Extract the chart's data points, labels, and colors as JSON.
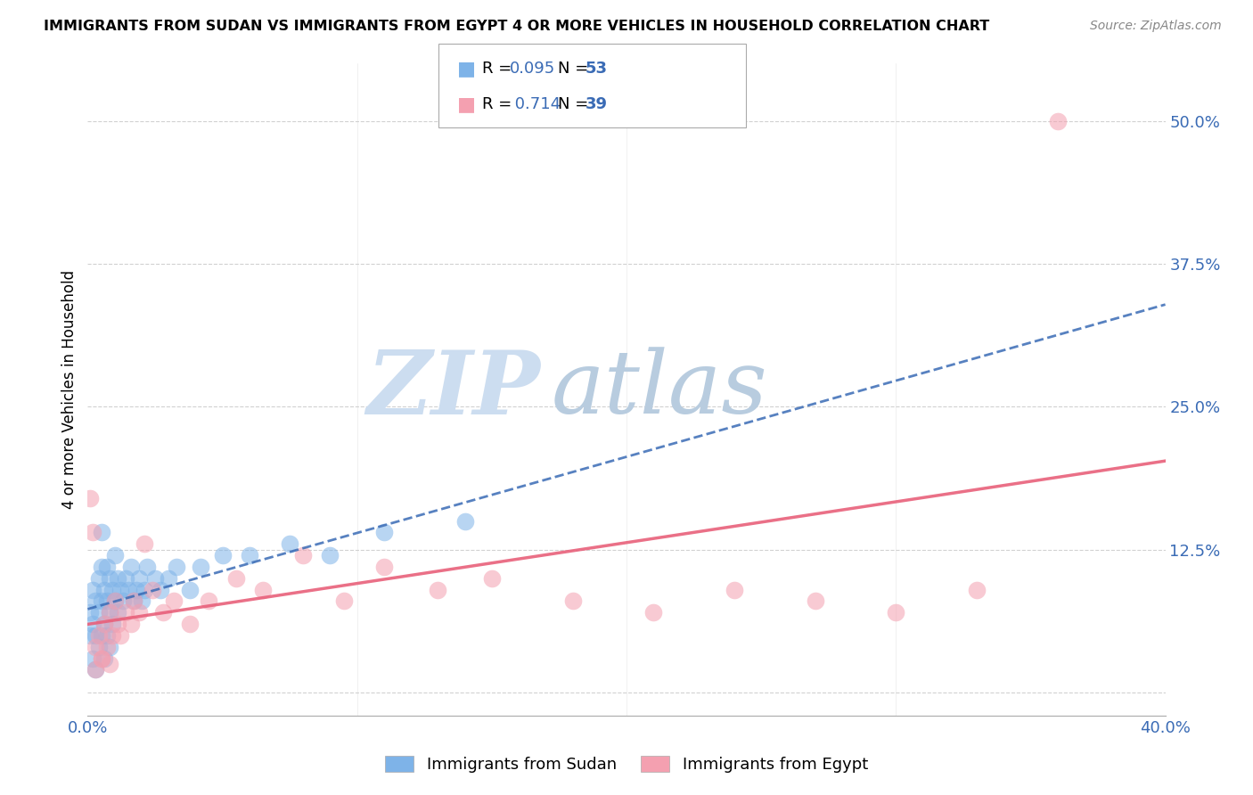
{
  "title": "IMMIGRANTS FROM SUDAN VS IMMIGRANTS FROM EGYPT 4 OR MORE VEHICLES IN HOUSEHOLD CORRELATION CHART",
  "source": "Source: ZipAtlas.com",
  "ylabel": "4 or more Vehicles in Household",
  "xlabel_sudan": "Immigrants from Sudan",
  "xlabel_egypt": "Immigrants from Egypt",
  "xlim": [
    0.0,
    0.4
  ],
  "ylim": [
    -0.02,
    0.55
  ],
  "x_ticks": [
    0.0,
    0.1,
    0.2,
    0.3,
    0.4
  ],
  "x_tick_labels_show": [
    "0.0%",
    "",
    "",
    "",
    "40.0%"
  ],
  "y_ticks": [
    0.0,
    0.125,
    0.25,
    0.375,
    0.5
  ],
  "y_tick_labels_show": [
    "",
    "12.5%",
    "25.0%",
    "37.5%",
    "50.0%"
  ],
  "sudan_R": 0.095,
  "sudan_N": 53,
  "egypt_R": 0.714,
  "egypt_N": 39,
  "sudan_color": "#7eb3e8",
  "egypt_color": "#f4a0b0",
  "sudan_line_color": "#3a6bb5",
  "egypt_line_color": "#e8607a",
  "watermark_zip": "ZIP",
  "watermark_atlas": "atlas",
  "watermark_color_zip": "#ccddf0",
  "watermark_color_atlas": "#b8ccdf",
  "grid_color": "#cccccc",
  "sudan_x": [
    0.001,
    0.001,
    0.002,
    0.002,
    0.002,
    0.003,
    0.003,
    0.003,
    0.004,
    0.004,
    0.004,
    0.005,
    0.005,
    0.005,
    0.005,
    0.006,
    0.006,
    0.006,
    0.007,
    0.007,
    0.007,
    0.008,
    0.008,
    0.008,
    0.009,
    0.009,
    0.01,
    0.01,
    0.011,
    0.011,
    0.012,
    0.013,
    0.014,
    0.015,
    0.016,
    0.017,
    0.018,
    0.019,
    0.02,
    0.021,
    0.022,
    0.025,
    0.027,
    0.03,
    0.033,
    0.038,
    0.042,
    0.05,
    0.06,
    0.075,
    0.09,
    0.11,
    0.14
  ],
  "sudan_y": [
    0.07,
    0.05,
    0.09,
    0.06,
    0.03,
    0.08,
    0.05,
    0.02,
    0.1,
    0.07,
    0.04,
    0.14,
    0.11,
    0.08,
    0.05,
    0.09,
    0.06,
    0.03,
    0.11,
    0.08,
    0.05,
    0.1,
    0.07,
    0.04,
    0.09,
    0.06,
    0.12,
    0.08,
    0.1,
    0.07,
    0.09,
    0.08,
    0.1,
    0.09,
    0.11,
    0.08,
    0.09,
    0.1,
    0.08,
    0.09,
    0.11,
    0.1,
    0.09,
    0.1,
    0.11,
    0.09,
    0.11,
    0.12,
    0.12,
    0.13,
    0.12,
    0.14,
    0.15
  ],
  "egypt_x": [
    0.001,
    0.002,
    0.003,
    0.003,
    0.004,
    0.005,
    0.006,
    0.007,
    0.008,
    0.009,
    0.01,
    0.011,
    0.012,
    0.014,
    0.016,
    0.017,
    0.019,
    0.021,
    0.024,
    0.028,
    0.032,
    0.038,
    0.045,
    0.055,
    0.065,
    0.08,
    0.095,
    0.11,
    0.13,
    0.15,
    0.18,
    0.21,
    0.24,
    0.27,
    0.3,
    0.33,
    0.36,
    0.005,
    0.008
  ],
  "egypt_y": [
    0.17,
    0.14,
    0.04,
    0.02,
    0.05,
    0.03,
    0.06,
    0.04,
    0.07,
    0.05,
    0.08,
    0.06,
    0.05,
    0.07,
    0.06,
    0.08,
    0.07,
    0.13,
    0.09,
    0.07,
    0.08,
    0.06,
    0.08,
    0.1,
    0.09,
    0.12,
    0.08,
    0.11,
    0.09,
    0.1,
    0.08,
    0.07,
    0.09,
    0.08,
    0.07,
    0.09,
    0.5,
    0.03,
    0.025
  ]
}
